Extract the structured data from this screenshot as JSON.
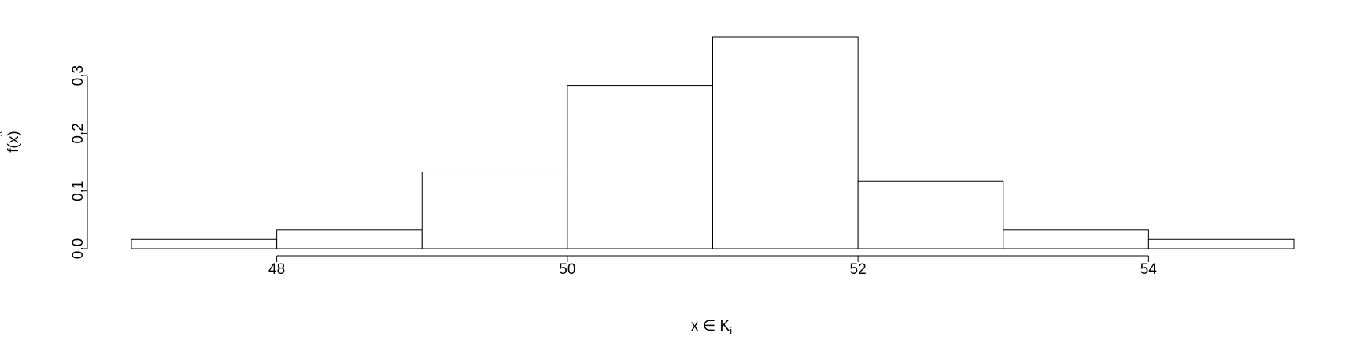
{
  "chart_data": {
    "type": "bar",
    "bins": [
      {
        "x0": 47,
        "x1": 48,
        "value": 0.016
      },
      {
        "x0": 48,
        "x1": 49,
        "value": 0.033
      },
      {
        "x0": 49,
        "x1": 50,
        "value": 0.133
      },
      {
        "x0": 50,
        "x1": 51,
        "value": 0.283
      },
      {
        "x0": 51,
        "x1": 52,
        "value": 0.367
      },
      {
        "x0": 52,
        "x1": 53,
        "value": 0.117
      },
      {
        "x0": 53,
        "x1": 54,
        "value": 0.033
      },
      {
        "x0": 54,
        "x1": 55,
        "value": 0.016
      }
    ],
    "xlim": [
      47,
      55
    ],
    "ylim": [
      0,
      0.367
    ],
    "xticks": [
      48,
      50,
      52,
      54
    ],
    "xtick_labels": [
      "48",
      "50",
      "52",
      "54"
    ],
    "yticks": [
      0.0,
      0.1,
      0.2,
      0.3
    ],
    "ytick_labels": [
      "0.0",
      "0.1",
      "0.2",
      "0.3"
    ],
    "xlabel": "x ∈ K",
    "xlabel_subscript": "i",
    "ylabel": "f(x)",
    "ylabel_accent": "^",
    "grid": false,
    "bar_fill": "#ffffff",
    "bar_stroke": "#000000"
  }
}
